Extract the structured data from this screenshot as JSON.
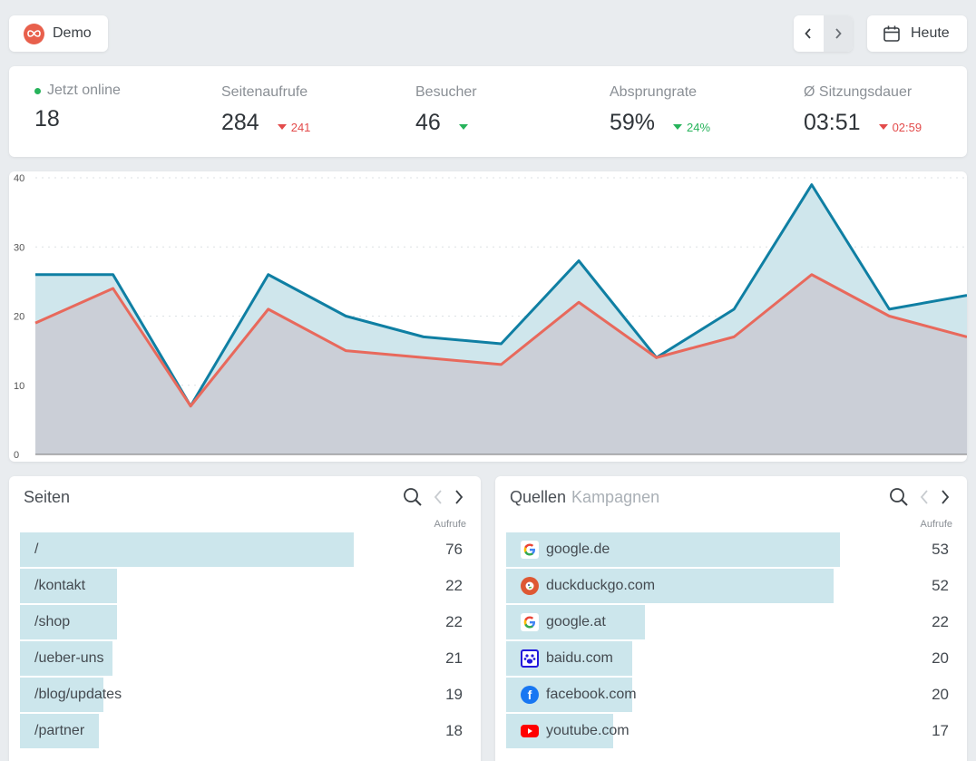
{
  "header": {
    "demo_label": "Demo",
    "today_label": "Heute"
  },
  "stats": {
    "online": {
      "label": "Jetzt online",
      "value": "18"
    },
    "pageviews": {
      "label": "Seitenaufrufe",
      "value": "284",
      "delta": "241",
      "direction": "down"
    },
    "visitors": {
      "label": "Besucher",
      "value": "46",
      "delta": "",
      "direction": "down"
    },
    "bounce": {
      "label": "Absprungrate",
      "value": "59%",
      "delta": "24%",
      "direction": "down"
    },
    "duration": {
      "label": "Ø Sitzungsdauer",
      "value": "03:51",
      "delta": "02:59",
      "direction": "down"
    }
  },
  "chart_data": {
    "type": "area",
    "x": [
      0,
      1,
      2,
      3,
      4,
      5,
      6,
      7,
      8,
      9,
      10,
      11,
      12
    ],
    "ylim": [
      0,
      40
    ],
    "yticks": [
      "0",
      "10",
      "20",
      "30",
      "40"
    ],
    "grid": true,
    "series": [
      {
        "values": [
          26,
          26,
          7,
          26,
          20,
          17,
          16,
          28,
          14,
          21,
          39,
          21,
          23
        ],
        "color": "#0f7fa3",
        "fill": "#cfe6ec"
      },
      {
        "values": [
          19,
          24,
          7,
          21,
          15,
          14,
          13,
          22,
          14,
          17,
          26,
          20,
          17
        ],
        "color": "#e8695c",
        "fill": "#cbcfd7"
      }
    ]
  },
  "pages": {
    "title": "Seiten",
    "col": "Aufrufe",
    "max": 76,
    "rows": [
      {
        "label": "/",
        "value": 76
      },
      {
        "label": "/kontakt",
        "value": 22
      },
      {
        "label": "/shop",
        "value": 22
      },
      {
        "label": "/ueber-uns",
        "value": 21
      },
      {
        "label": "/blog/updates",
        "value": 19
      },
      {
        "label": "/partner",
        "value": 18
      }
    ]
  },
  "sources": {
    "title": "Quellen",
    "tab2": "Kampagnen",
    "col": "Aufrufe",
    "max": 53,
    "rows": [
      {
        "label": "google.de",
        "value": 53,
        "icon": "google-icon"
      },
      {
        "label": "duckduckgo.com",
        "value": 52,
        "icon": "duckduckgo-icon"
      },
      {
        "label": "google.at",
        "value": 22,
        "icon": "google-icon"
      },
      {
        "label": "baidu.com",
        "value": 20,
        "icon": "baidu-icon"
      },
      {
        "label": "facebook.com",
        "value": 20,
        "icon": "facebook-icon"
      },
      {
        "label": "youtube.com",
        "value": 17,
        "icon": "youtube-icon"
      }
    ]
  }
}
